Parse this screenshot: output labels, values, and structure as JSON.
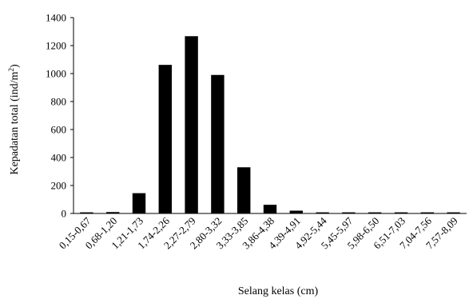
{
  "chart_data": {
    "type": "bar",
    "title": "",
    "xlabel": "Selang kelas (cm)",
    "ylabel": "Kepadatan total (ind/m²)",
    "ylabel_base": "Kepadatan total (ind/m",
    "ylabel_sup": "2",
    "ylabel_end": ")",
    "ylim": [
      0,
      1400
    ],
    "yticks": [
      "0",
      "200",
      "400",
      "600",
      "800",
      "1000",
      "1200",
      "1400"
    ],
    "categories": [
      "0,15-0,67",
      "0,68-1,20",
      "1,21-1,73",
      "1,74-2,26",
      "2,27-2,79",
      "2,80-3,32",
      "3,33-3,85",
      "3,86-4,38",
      "4,39-4,91",
      "4,92-5,44",
      "5,45-5,97",
      "5,98-6,50",
      "6,51-7,03",
      "7,04-7,56",
      "7,57-8,09"
    ],
    "values": [
      8,
      10,
      145,
      1062,
      1267,
      990,
      330,
      62,
      20,
      8,
      8,
      8,
      8,
      8,
      8
    ],
    "bar_color": "#000000",
    "grid": false,
    "legend": "none"
  }
}
